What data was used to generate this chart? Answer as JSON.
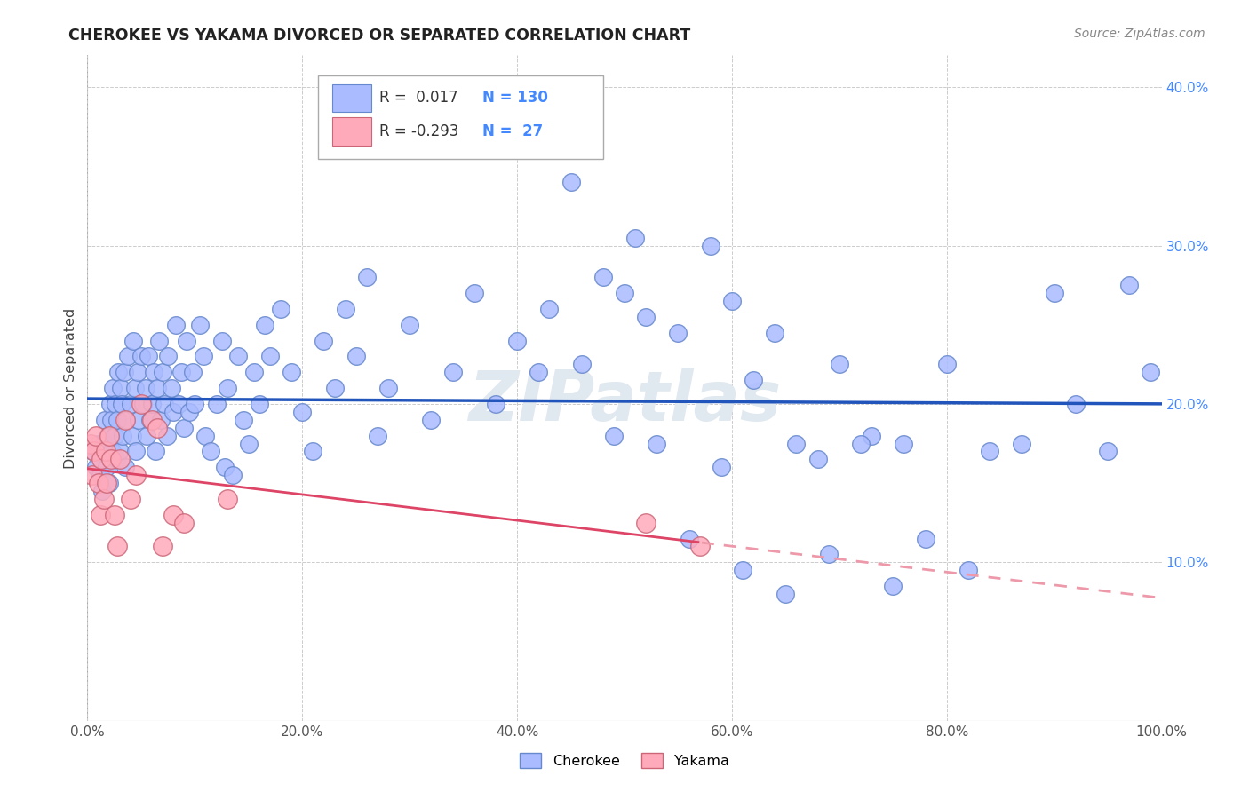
{
  "title": "CHEROKEE VS YAKAMA DIVORCED OR SEPARATED CORRELATION CHART",
  "source": "Source: ZipAtlas.com",
  "ylabel": "Divorced or Separated",
  "background_color": "#ffffff",
  "plot_bg_color": "#ffffff",
  "grid_color": "#cccccc",
  "cherokee_color": "#aabbff",
  "cherokee_edge_color": "#6688cc",
  "yakama_color": "#ffaabb",
  "yakama_edge_color": "#cc6677",
  "line_cherokee_color": "#2255bb",
  "line_yakama_color": "#dd4466",
  "line_yakama_dash_color": "#ee99aa",
  "R_cherokee": 0.017,
  "N_cherokee": 130,
  "R_yakama": -0.293,
  "N_yakama": 27,
  "xlim": [
    0.0,
    1.0
  ],
  "ylim": [
    0.0,
    0.42
  ],
  "xticks": [
    0.0,
    0.2,
    0.4,
    0.6,
    0.8,
    1.0
  ],
  "yticks": [
    0.0,
    0.1,
    0.2,
    0.3,
    0.4
  ],
  "xticklabels": [
    "0.0%",
    "20.0%",
    "40.0%",
    "60.0%",
    "80.0%",
    "100.0%"
  ],
  "yticklabels_right": [
    "",
    "10.0%",
    "20.0%",
    "30.0%",
    "40.0%"
  ],
  "watermark": "ZIPatlas",
  "legend_cherokee_label": "Cherokee",
  "legend_yakama_label": "Yakama",
  "cherokee_x": [
    0.005,
    0.008,
    0.01,
    0.012,
    0.014,
    0.015,
    0.016,
    0.018,
    0.019,
    0.02,
    0.021,
    0.022,
    0.023,
    0.024,
    0.025,
    0.026,
    0.027,
    0.028,
    0.029,
    0.03,
    0.031,
    0.032,
    0.033,
    0.034,
    0.035,
    0.036,
    0.038,
    0.04,
    0.042,
    0.043,
    0.044,
    0.045,
    0.047,
    0.048,
    0.05,
    0.052,
    0.054,
    0.055,
    0.057,
    0.058,
    0.06,
    0.062,
    0.063,
    0.065,
    0.067,
    0.068,
    0.07,
    0.072,
    0.074,
    0.075,
    0.078,
    0.08,
    0.082,
    0.085,
    0.087,
    0.09,
    0.092,
    0.095,
    0.098,
    0.1,
    0.105,
    0.108,
    0.11,
    0.115,
    0.12,
    0.125,
    0.128,
    0.13,
    0.135,
    0.14,
    0.145,
    0.15,
    0.155,
    0.16,
    0.165,
    0.17,
    0.18,
    0.19,
    0.2,
    0.21,
    0.22,
    0.23,
    0.24,
    0.25,
    0.26,
    0.27,
    0.28,
    0.3,
    0.32,
    0.34,
    0.36,
    0.38,
    0.4,
    0.42,
    0.45,
    0.48,
    0.5,
    0.52,
    0.55,
    0.58,
    0.6,
    0.62,
    0.64,
    0.66,
    0.68,
    0.7,
    0.73,
    0.76,
    0.8,
    0.84,
    0.87,
    0.9,
    0.92,
    0.95,
    0.97,
    0.99,
    0.43,
    0.46,
    0.49,
    0.51,
    0.53,
    0.56,
    0.59,
    0.61,
    0.65,
    0.69,
    0.72,
    0.75,
    0.78,
    0.82
  ],
  "cherokee_y": [
    0.17,
    0.16,
    0.175,
    0.155,
    0.145,
    0.175,
    0.19,
    0.16,
    0.18,
    0.15,
    0.2,
    0.19,
    0.17,
    0.21,
    0.18,
    0.2,
    0.165,
    0.19,
    0.22,
    0.17,
    0.21,
    0.2,
    0.18,
    0.22,
    0.16,
    0.19,
    0.23,
    0.2,
    0.18,
    0.24,
    0.21,
    0.17,
    0.22,
    0.19,
    0.23,
    0.2,
    0.21,
    0.18,
    0.23,
    0.19,
    0.2,
    0.22,
    0.17,
    0.21,
    0.24,
    0.19,
    0.22,
    0.2,
    0.18,
    0.23,
    0.21,
    0.195,
    0.25,
    0.2,
    0.22,
    0.185,
    0.24,
    0.195,
    0.22,
    0.2,
    0.25,
    0.23,
    0.18,
    0.17,
    0.2,
    0.24,
    0.16,
    0.21,
    0.155,
    0.23,
    0.19,
    0.175,
    0.22,
    0.2,
    0.25,
    0.23,
    0.26,
    0.22,
    0.195,
    0.17,
    0.24,
    0.21,
    0.26,
    0.23,
    0.28,
    0.18,
    0.21,
    0.25,
    0.19,
    0.22,
    0.27,
    0.2,
    0.24,
    0.22,
    0.34,
    0.28,
    0.27,
    0.255,
    0.245,
    0.3,
    0.265,
    0.215,
    0.245,
    0.175,
    0.165,
    0.225,
    0.18,
    0.175,
    0.225,
    0.17,
    0.175,
    0.27,
    0.2,
    0.17,
    0.275,
    0.22,
    0.26,
    0.225,
    0.18,
    0.305,
    0.175,
    0.115,
    0.16,
    0.095,
    0.08,
    0.105,
    0.175,
    0.085,
    0.115,
    0.095
  ],
  "yakama_x": [
    0.003,
    0.005,
    0.006,
    0.008,
    0.01,
    0.012,
    0.013,
    0.015,
    0.017,
    0.018,
    0.02,
    0.022,
    0.025,
    0.028,
    0.03,
    0.035,
    0.04,
    0.045,
    0.05,
    0.06,
    0.065,
    0.07,
    0.08,
    0.09,
    0.13,
    0.52,
    0.57
  ],
  "yakama_y": [
    0.175,
    0.155,
    0.17,
    0.18,
    0.15,
    0.13,
    0.165,
    0.14,
    0.17,
    0.15,
    0.18,
    0.165,
    0.13,
    0.11,
    0.165,
    0.19,
    0.14,
    0.155,
    0.2,
    0.19,
    0.185,
    0.11,
    0.13,
    0.125,
    0.14,
    0.125,
    0.11
  ]
}
